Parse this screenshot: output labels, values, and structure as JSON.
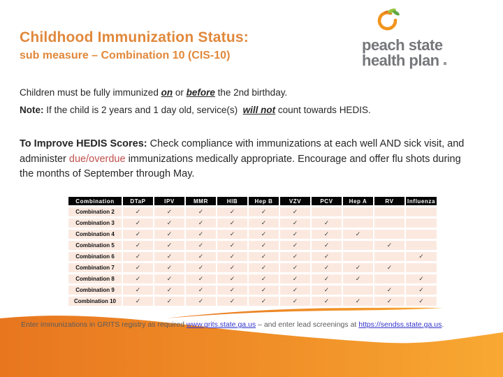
{
  "slide": {
    "title": "Childhood Immunization Status:",
    "subtitle": "sub measure – Combination 10 (CIS-10)"
  },
  "logo": {
    "name": "peach-state-health-plan-logo",
    "line1": "peach state",
    "line2": "health plan"
  },
  "intro": {
    "line1_pre": "Children must be fully immunized ",
    "line1_em1": "on",
    "line1_mid": " or ",
    "line1_em2": "before",
    "line1_post": " the 2nd birthday.",
    "note_label": "Note:",
    "note_pre": " If the child is 2 years and 1 day old, service(s)  ",
    "note_em": "will not",
    "note_post": " count towards HEDIS."
  },
  "improve": {
    "label": "To Improve HEDIS Scores:",
    "text_pre": " Check compliance with immunizations at each well AND sick visit, and administer ",
    "highlight": "due/overdue",
    "text_post": " immunizations medically appropriate. Encourage and offer flu shots during the months of September through May."
  },
  "table": {
    "check_glyph": "✓",
    "columns": [
      "Combination",
      "DTaP",
      "IPV",
      "MMR",
      "HIB",
      "Hep B",
      "VZV",
      "PCV",
      "Hep A",
      "RV",
      "Influenza"
    ],
    "rows": [
      {
        "name": "Combination 2",
        "checks": [
          1,
          1,
          1,
          1,
          1,
          1,
          0,
          0,
          0,
          0
        ]
      },
      {
        "name": "Combination 3",
        "checks": [
          1,
          1,
          1,
          1,
          1,
          1,
          1,
          0,
          0,
          0
        ]
      },
      {
        "name": "Combination 4",
        "checks": [
          1,
          1,
          1,
          1,
          1,
          1,
          1,
          1,
          0,
          0
        ]
      },
      {
        "name": "Combination 5",
        "checks": [
          1,
          1,
          1,
          1,
          1,
          1,
          1,
          0,
          1,
          0
        ]
      },
      {
        "name": "Combination 6",
        "checks": [
          1,
          1,
          1,
          1,
          1,
          1,
          1,
          0,
          0,
          1
        ]
      },
      {
        "name": "Combination 7",
        "checks": [
          1,
          1,
          1,
          1,
          1,
          1,
          1,
          1,
          1,
          0
        ]
      },
      {
        "name": "Combination 8",
        "checks": [
          1,
          1,
          1,
          1,
          1,
          1,
          1,
          1,
          0,
          1
        ]
      },
      {
        "name": "Combination 9",
        "checks": [
          1,
          1,
          1,
          1,
          1,
          1,
          1,
          0,
          1,
          1
        ]
      },
      {
        "name": "Combination 10",
        "checks": [
          1,
          1,
          1,
          1,
          1,
          1,
          1,
          1,
          1,
          1
        ]
      }
    ]
  },
  "footer": {
    "text_pre": "Enter immunizations in GRITS registry as required ",
    "link1": "www.grits.state.ga.us",
    "text_mid": " – and enter lead screenings at ",
    "link2": "https://sendss.state.ga.us",
    "text_post": "."
  },
  "colors": {
    "title_orange": "#E1883B",
    "logo_gray": "#76777B",
    "red_text": "#C0504D",
    "link_blue": "#3333CC",
    "row_pink": "#FBE9E0",
    "header_bg": "#050505",
    "wave_left": "#E8761F",
    "wave_right": "#F8A933"
  }
}
